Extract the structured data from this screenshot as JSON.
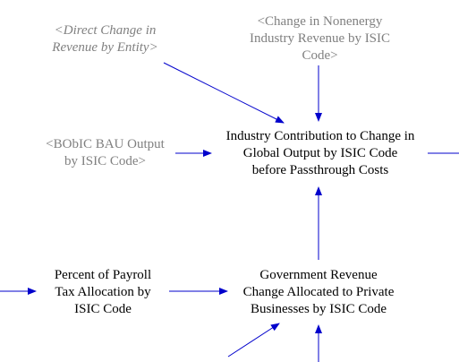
{
  "nodes": {
    "direct_change": {
      "label": "<Direct Change in\nRevenue by Entity>"
    },
    "nonenergy_change": {
      "label": "<Change in Nonenergy\nIndustry Revenue by ISIC\nCode>"
    },
    "bobic_bau": {
      "label": "<BObIC BAU Output\nby ISIC Code>"
    },
    "industry_contribution": {
      "label": "Industry Contribution to Change in\nGlobal Output by ISIC Code\nbefore Passthrough Costs"
    },
    "percent_payroll": {
      "label": "Percent of Payroll\nTax Allocation by\nISIC Code"
    },
    "gov_revenue_change": {
      "label": "Government Revenue\nChange Allocated to Private\nBusinesses by ISIC Code"
    }
  },
  "colors": {
    "arrow": "#0000cc",
    "shadow_text": "#808080",
    "text": "#000000"
  }
}
